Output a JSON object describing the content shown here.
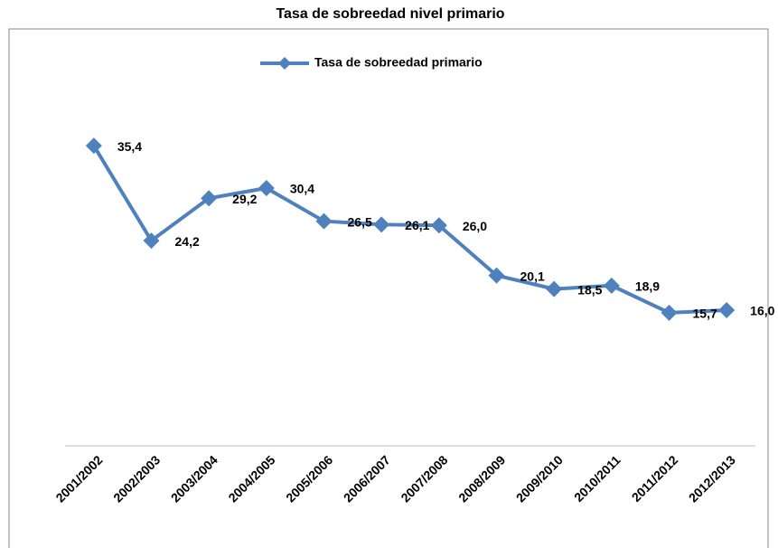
{
  "chart_data": {
    "type": "line",
    "title": "Tasa de sobreedad nivel primario",
    "categories": [
      "2001/2002",
      "2002/2003",
      "2003/2004",
      "2004/2005",
      "2005/2006",
      "2006/2007",
      "2007/2008",
      "2008/2009",
      "2009/2010",
      "2010/2011",
      "2011/2012",
      "2012/2013"
    ],
    "series": [
      {
        "name": "Tasa de sobreedad primario",
        "color": "#4f81bd",
        "values": [
          35.4,
          24.2,
          29.2,
          30.4,
          26.5,
          26.1,
          26.0,
          20.1,
          18.5,
          18.9,
          15.7,
          16.0
        ],
        "value_labels": [
          "35,4",
          "24,2",
          "29,2",
          "30,4",
          "26,5",
          "26,1",
          "26,0",
          "20,1",
          "18,5",
          "18,9",
          "15,7",
          "16,0"
        ]
      }
    ],
    "legend": "top"
  }
}
